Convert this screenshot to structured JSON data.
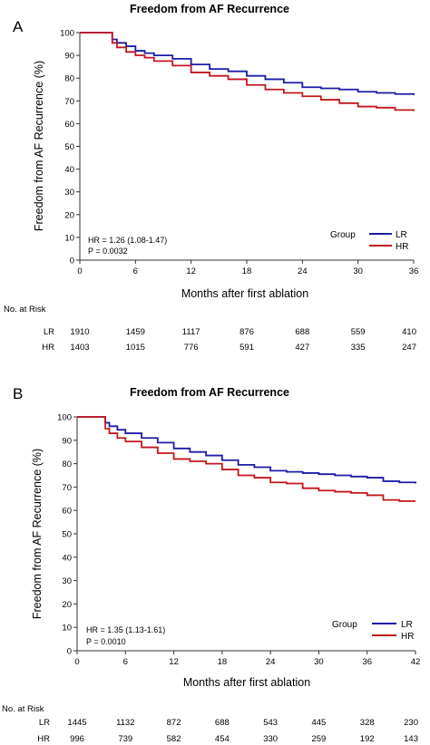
{
  "chart_data": [
    {
      "panel": "A",
      "type": "line",
      "title": "Freedom from AF Recurrence",
      "xlabel": "Months after first ablation",
      "ylabel": "Freedom from AF Recurrence (%)",
      "xlim": [
        0,
        36
      ],
      "ylim": [
        0,
        100
      ],
      "xticks": [
        0,
        6,
        12,
        18,
        24,
        30,
        36
      ],
      "yticks": [
        0,
        10,
        20,
        30,
        40,
        50,
        60,
        70,
        80,
        90,
        100
      ],
      "grid": false,
      "legend": {
        "title": "Group",
        "placement": "bottom-right"
      },
      "annotations": [
        "HR = 1.26 (1.08-1.47)",
        "P = 0.0032"
      ],
      "series": [
        {
          "name": "LR",
          "color": "#1c1ca8",
          "x": [
            0,
            3,
            3.5,
            4,
            5,
            6,
            7,
            8,
            10,
            12,
            14,
            16,
            18,
            20,
            22,
            24,
            26,
            28,
            30,
            32,
            34,
            36
          ],
          "y": [
            100,
            100,
            97,
            95.5,
            94,
            92,
            91,
            90,
            88.5,
            86,
            84,
            83,
            81,
            79.5,
            78,
            76,
            75.5,
            75,
            74,
            73.5,
            73,
            72.5
          ]
        },
        {
          "name": "HR",
          "color": "#c4161c",
          "x": [
            0,
            3,
            3.5,
            4,
            5,
            6,
            7,
            8,
            10,
            12,
            14,
            16,
            18,
            20,
            22,
            24,
            26,
            28,
            30,
            32,
            34,
            36
          ],
          "y": [
            100,
            100,
            95.5,
            93.5,
            91.5,
            90,
            89,
            87.5,
            85.5,
            82.5,
            81,
            79.5,
            77,
            75,
            73.5,
            72,
            70.5,
            69,
            67.5,
            67,
            66,
            65.5
          ]
        }
      ],
      "risk_table": {
        "header": "No. at Risk",
        "x": [
          0,
          6,
          12,
          18,
          24,
          30,
          36
        ],
        "rows": [
          {
            "label": "LR",
            "values": [
              "1910",
              "1459",
              "1117",
              "876",
              "688",
              "559",
              "410"
            ]
          },
          {
            "label": "HR",
            "values": [
              "1403",
              "1015",
              "776",
              "591",
              "427",
              "335",
              "247"
            ]
          }
        ]
      }
    },
    {
      "panel": "B",
      "type": "line",
      "title": "Freedom from AF Recurrence",
      "xlabel": "Months after first ablation",
      "ylabel": "Freedom from AF Recurrence (%)",
      "xlim": [
        0,
        42
      ],
      "ylim": [
        0,
        100
      ],
      "xticks": [
        0,
        6,
        12,
        18,
        24,
        30,
        36,
        42
      ],
      "yticks": [
        0,
        10,
        20,
        30,
        40,
        50,
        60,
        70,
        80,
        90,
        100
      ],
      "grid": false,
      "legend": {
        "title": "Group",
        "placement": "bottom-right"
      },
      "annotations": [
        "HR = 1.35 (1.13-1.61)",
        "P = 0.0010"
      ],
      "series": [
        {
          "name": "LR",
          "color": "#1c1ca8",
          "x": [
            0,
            3,
            3.5,
            4,
            5,
            6,
            8,
            10,
            12,
            14,
            16,
            18,
            20,
            22,
            24,
            26,
            28,
            30,
            32,
            34,
            36,
            38,
            40,
            42
          ],
          "y": [
            100,
            100,
            97.5,
            96,
            94.5,
            93,
            91,
            89,
            86.5,
            85,
            83.5,
            81.5,
            79.5,
            78.5,
            77,
            76.5,
            76,
            75.5,
            75,
            74.5,
            74,
            72.5,
            72,
            71.5
          ]
        },
        {
          "name": "HR",
          "color": "#c4161c",
          "x": [
            0,
            3,
            3.5,
            4,
            5,
            6,
            8,
            10,
            12,
            14,
            16,
            18,
            20,
            22,
            24,
            26,
            28,
            30,
            32,
            34,
            36,
            38,
            40,
            42
          ],
          "y": [
            100,
            100,
            95,
            93,
            91,
            89.5,
            87,
            84.5,
            82,
            81,
            80,
            77.5,
            75,
            74,
            72,
            71.5,
            69.5,
            68.5,
            68,
            67.5,
            66.5,
            64.5,
            64,
            64
          ]
        }
      ],
      "risk_table": {
        "header": "No. at Risk",
        "x": [
          0,
          6,
          12,
          18,
          24,
          30,
          36,
          42
        ],
        "rows": [
          {
            "label": "LR",
            "values": [
              "1445",
              "1132",
              "872",
              "688",
              "543",
              "445",
              "328",
              "230"
            ]
          },
          {
            "label": "HR",
            "values": [
              "996",
              "739",
              "582",
              "454",
              "330",
              "259",
              "192",
              "143"
            ]
          }
        ]
      }
    }
  ]
}
